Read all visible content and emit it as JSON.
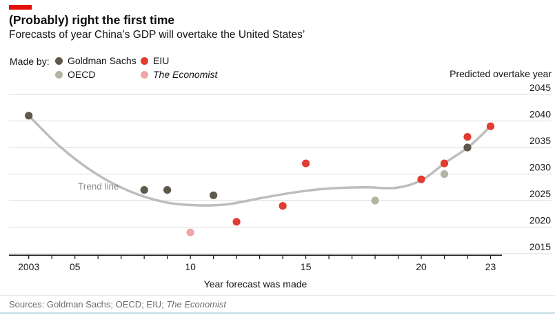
{
  "page": {
    "tag_color": "#E3120B",
    "title": "(Probably) right the first time",
    "subtitle": "Forecasts of year China’s GDP will overtake the United States’"
  },
  "legend": {
    "made_by_label": "Made by:",
    "items": [
      {
        "id": "goldman-sachs",
        "label": "Goldman Sachs",
        "color": "#5E594B",
        "italic": false
      },
      {
        "id": "oecd",
        "label": "OECD",
        "color": "#B5B3A3",
        "italic": false
      },
      {
        "id": "eiu",
        "label": "EIU",
        "color": "#E23B30",
        "italic": false
      },
      {
        "id": "the-economist",
        "label": "The Economist",
        "color": "#F0A5A8",
        "italic": true
      }
    ]
  },
  "chart_data": {
    "type": "scatter",
    "title": "(Probably) right the first time",
    "subtitle": "Forecasts of year China’s GDP will overtake the United States’",
    "xlabel": "Year forecast was made",
    "ylabel": "Predicted overtake year",
    "x_range": [
      2003,
      2023
    ],
    "y_range": [
      2015,
      2045
    ],
    "grid": "horizontal",
    "legend_position": "top-left",
    "y_ticks": [
      2045,
      2040,
      2035,
      2030,
      2025,
      2020,
      2015
    ],
    "x_tick_years": [
      2003,
      2004,
      2005,
      2006,
      2007,
      2008,
      2009,
      2010,
      2011,
      2012,
      2013,
      2014,
      2015,
      2016,
      2017,
      2018,
      2019,
      2020,
      2021,
      2022,
      2023
    ],
    "x_tick_labels": [
      {
        "year": 2003,
        "label": "2003"
      },
      {
        "year": 2005,
        "label": "05"
      },
      {
        "year": 2010,
        "label": "10"
      },
      {
        "year": 2015,
        "label": "15"
      },
      {
        "year": 2020,
        "label": "20"
      },
      {
        "year": 2023,
        "label": "23"
      }
    ],
    "series": [
      {
        "name": "Goldman Sachs",
        "color": "#5E594B",
        "points": [
          [
            2003,
            2041
          ],
          [
            2008,
            2027
          ],
          [
            2009,
            2027
          ],
          [
            2011,
            2026
          ],
          [
            2022,
            2035
          ]
        ]
      },
      {
        "name": "OECD",
        "color": "#B5B3A3",
        "points": [
          [
            2018,
            2025
          ],
          [
            2021,
            2030
          ]
        ]
      },
      {
        "name": "EIU",
        "color": "#E23B30",
        "points": [
          [
            2012,
            2021
          ],
          [
            2014,
            2024
          ],
          [
            2015,
            2032
          ],
          [
            2020,
            2029
          ],
          [
            2021,
            2032
          ],
          [
            2022,
            2037
          ],
          [
            2023,
            2039
          ]
        ]
      },
      {
        "name": "The Economist",
        "color": "#F0A5A8",
        "points": [
          [
            2010,
            2019
          ]
        ]
      }
    ],
    "trend_line": {
      "label": "Trend line",
      "color": "#BDBDBD",
      "points": [
        [
          2003,
          2041
        ],
        [
          2004.4,
          2035
        ],
        [
          2005.9,
          2030.1
        ],
        [
          2007.4,
          2026.7
        ],
        [
          2008.9,
          2024.7
        ],
        [
          2010.3,
          2024.1
        ],
        [
          2011.6,
          2024.3
        ],
        [
          2013.1,
          2025.5
        ],
        [
          2014.6,
          2026.6
        ],
        [
          2016.1,
          2027.3
        ],
        [
          2017.6,
          2027.5
        ],
        [
          2018.9,
          2027.4
        ],
        [
          2020,
          2028.8
        ],
        [
          2021,
          2032
        ],
        [
          2022.1,
          2035.3
        ],
        [
          2023,
          2039
        ]
      ]
    },
    "style": {
      "gridline_color": "#D9D9D9",
      "axis_color": "#121212",
      "tick_label_color": "#1a1a1a"
    }
  },
  "footer": {
    "sources_prefix": "Sources: Goldman Sachs; OECD; EIU; ",
    "sources_italic": "The Economist"
  }
}
